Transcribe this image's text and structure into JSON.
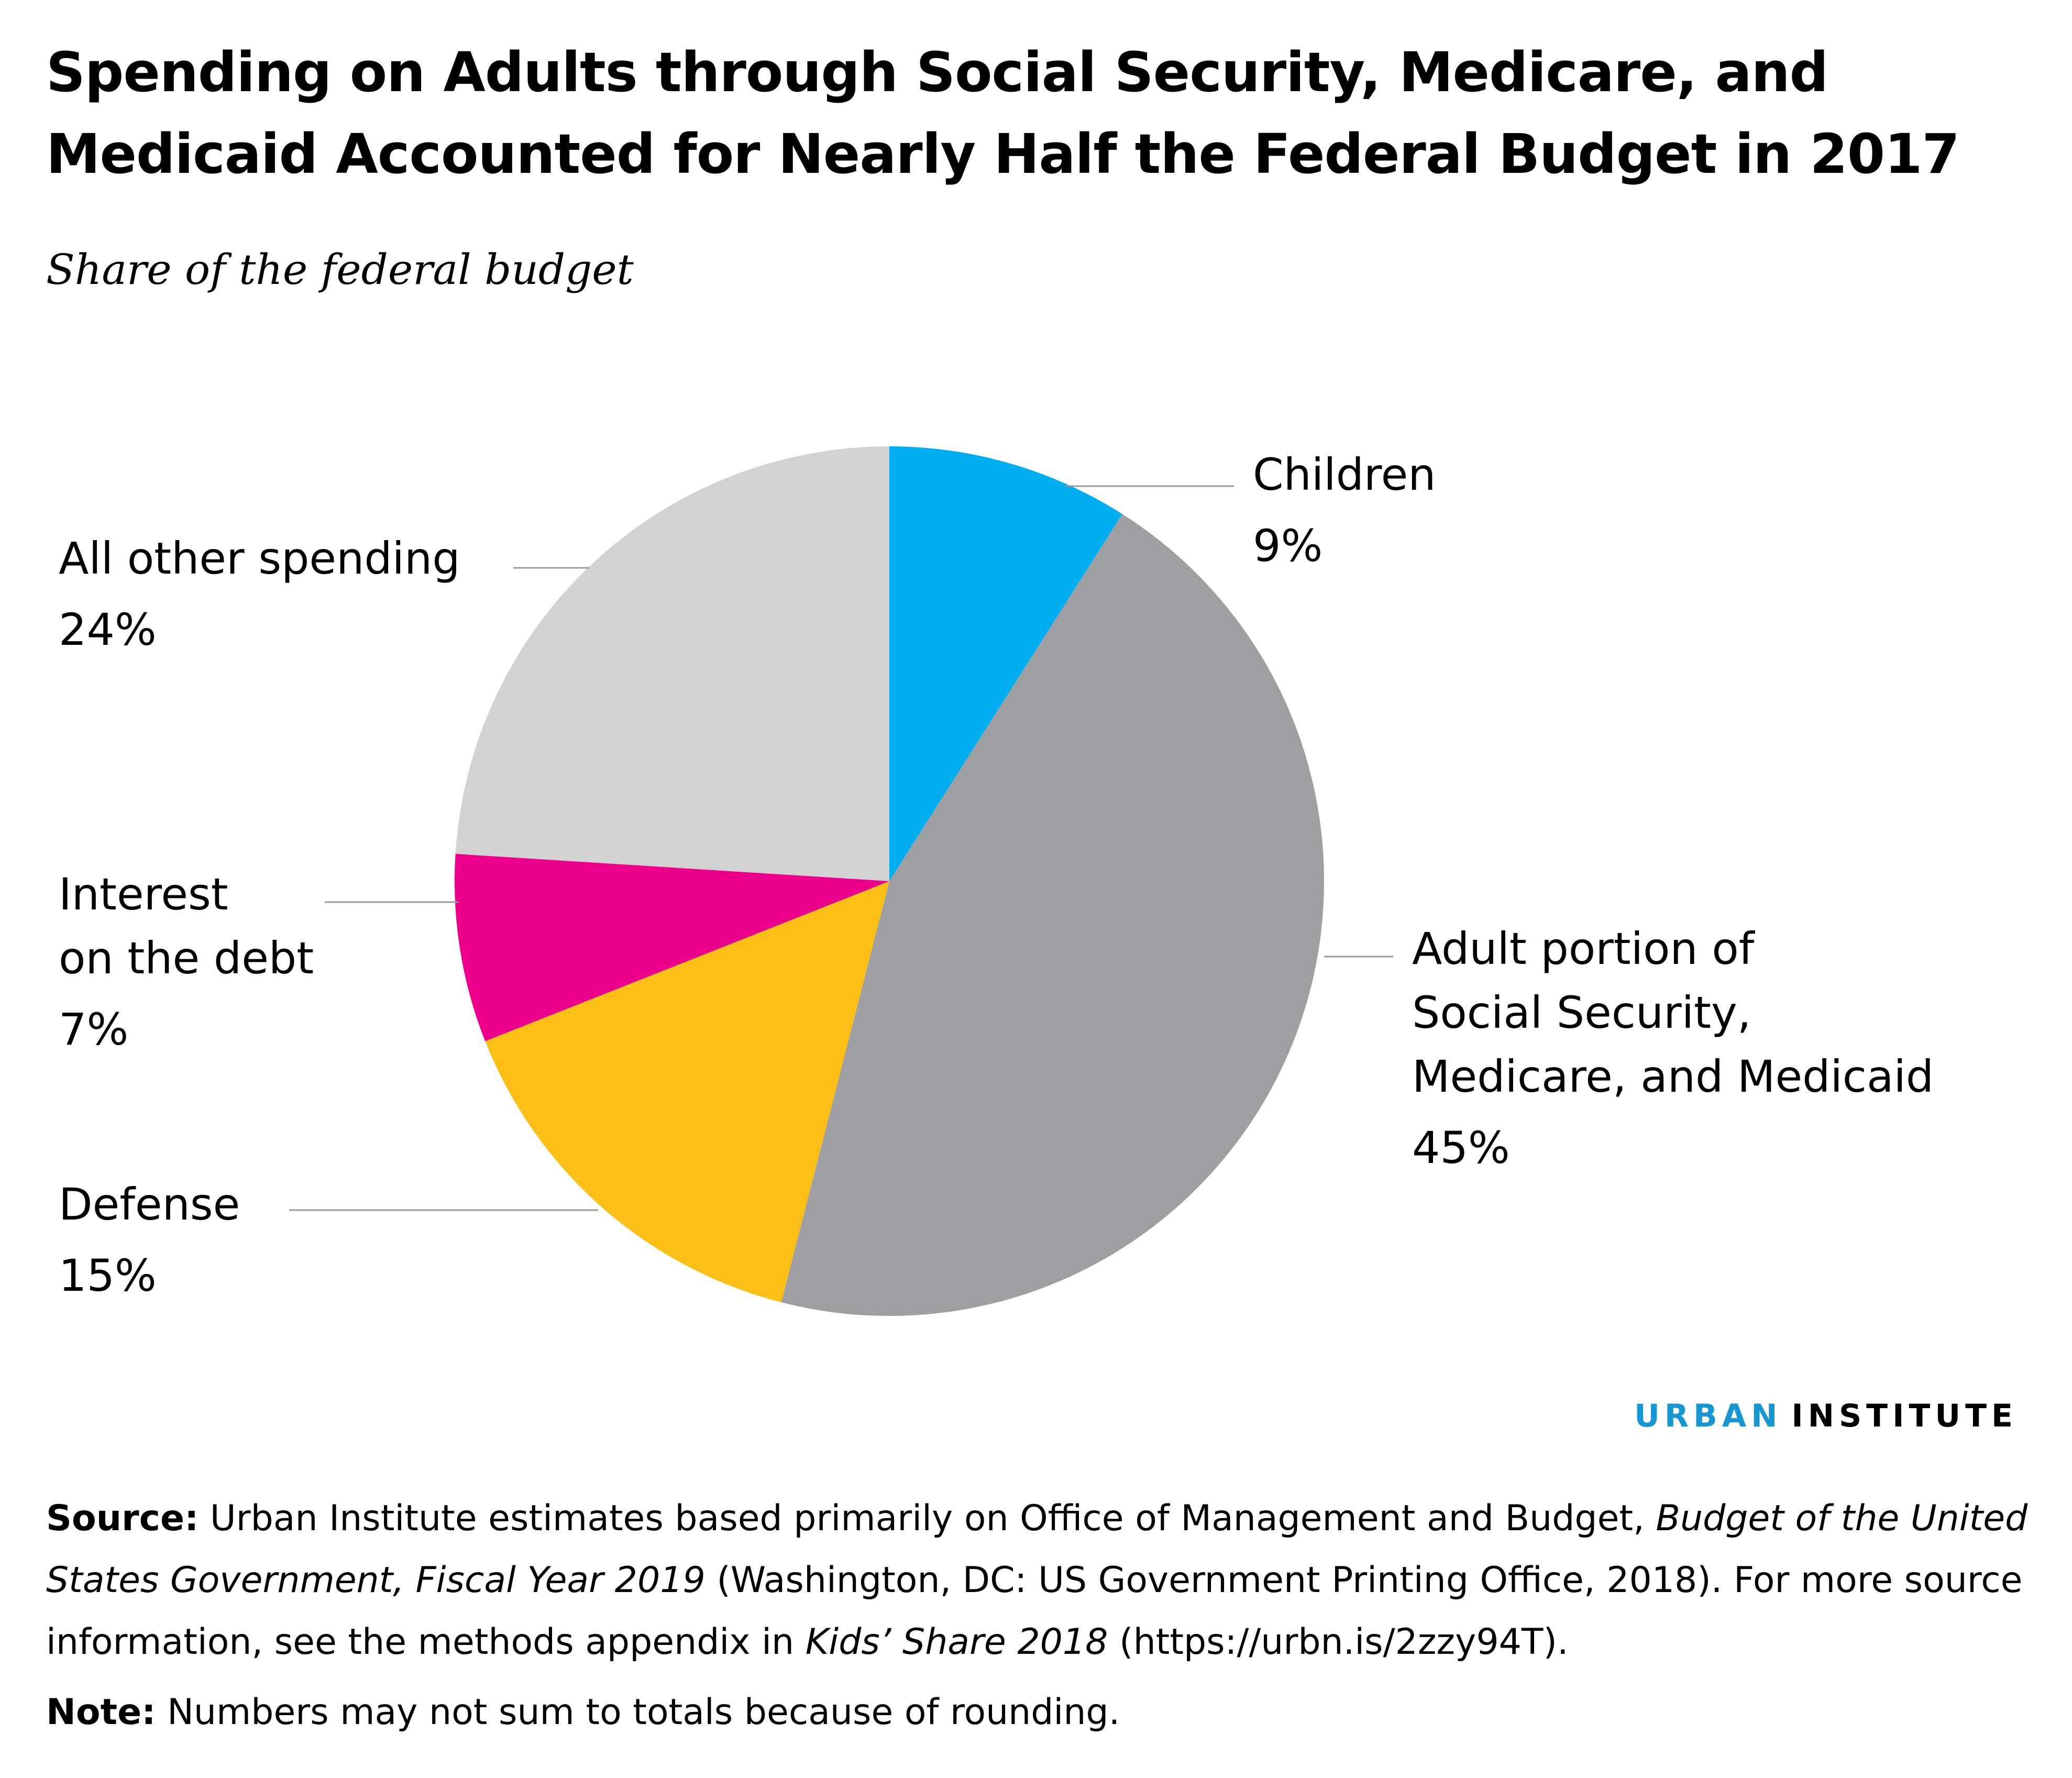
{
  "title": "Spending on Adults through Social Security, Medicare, and Medicaid Accounted for Nearly Half the Federal Budget in 2017",
  "subtitle": "Share of the federal budget",
  "chart_data": {
    "type": "pie",
    "title": "Spending on Adults through Social Security, Medicare, and Medicaid Accounted for Nearly Half the Federal Budget in 2017",
    "subtitle": "Share of the federal budget",
    "start": "12 o'clock",
    "direction": "clockwise",
    "slices": [
      {
        "label": "Children",
        "value": 9,
        "value_label": "9%",
        "color": "#00aeef"
      },
      {
        "label": "Adult portion of\nSocial Security,\nMedicare, and Medicaid",
        "value": 45,
        "value_label": "45%",
        "color": "#9d9fa2"
      },
      {
        "label": "Defense",
        "value": 15,
        "value_label": "15%",
        "color": "#fbbf18"
      },
      {
        "label": "Interest\non the debt",
        "value": 7,
        "value_label": "7%",
        "color": "#ec008b"
      },
      {
        "label": "All other spending",
        "value": 24,
        "value_label": "24%",
        "color": "#d2d2d2"
      }
    ]
  },
  "branding": {
    "part1": "URBAN",
    "part2": "INSTITUTE",
    "part1_color": "#1696d2"
  },
  "source": {
    "label": "Source:",
    "text1": " Urban Institute estimates based primarily on Office of Management and Budget, ",
    "italic1": "Budget of the United States Government, Fiscal Year 2019",
    "text2": " (Washington, DC: US Government Printing Office, 2018). For more source information, see the methods appendix in ",
    "italic2": "Kids’ Share 2018",
    "text3": " (https://urbn.is/2zzy94T)."
  },
  "note": {
    "label": "Note:",
    "text": " Numbers may not sum to totals because of rounding."
  }
}
